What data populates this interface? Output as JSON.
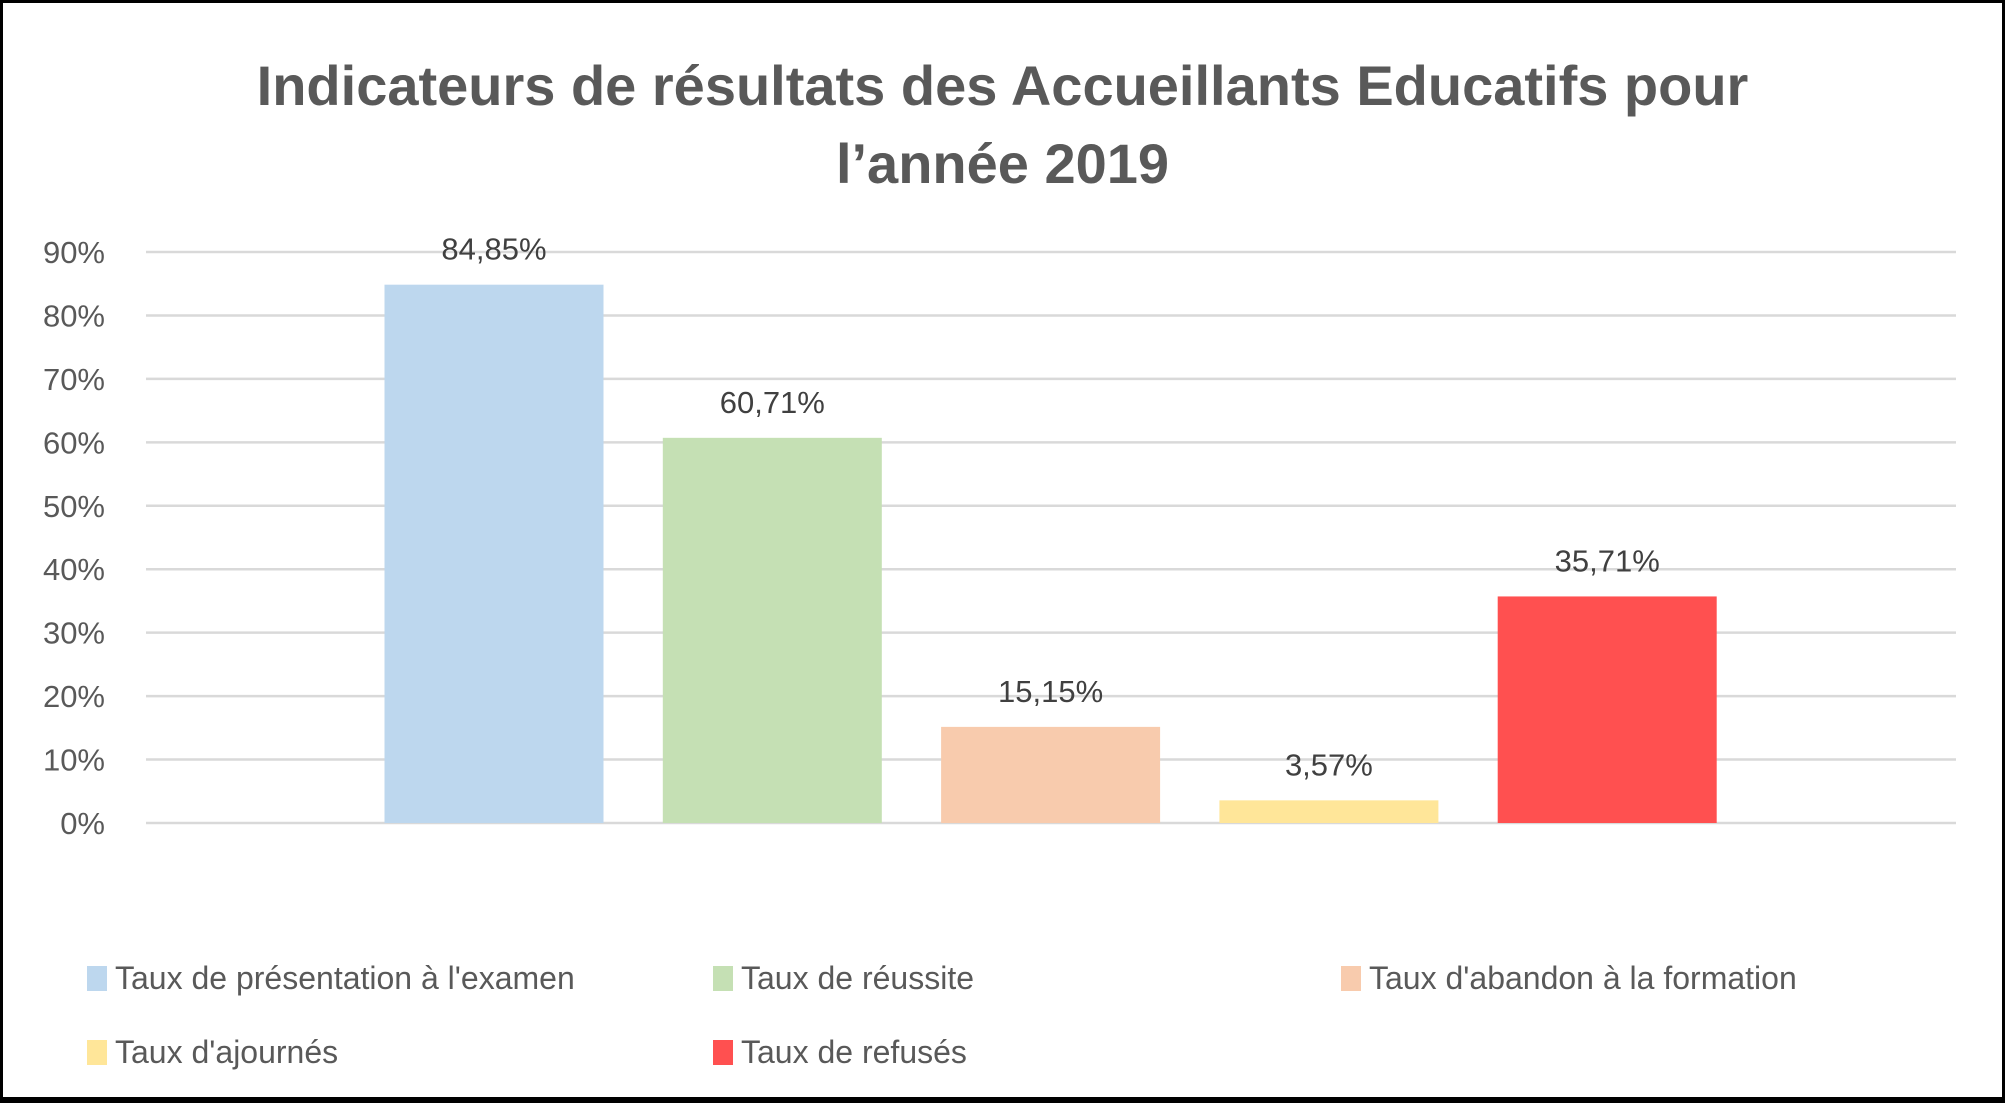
{
  "chart_data": {
    "type": "bar",
    "title_lines": [
      "Indicateurs de résultats des Accueillants Educatifs pour",
      "l’année 2019"
    ],
    "categories": [
      "Taux de présentation à l'examen",
      "Taux de réussite",
      "Taux d'abandon à la formation",
      "Taux d'ajournés",
      "Taux de refusés"
    ],
    "values": [
      84.85,
      60.71,
      15.15,
      3.57,
      35.71
    ],
    "data_labels": [
      "84,85%",
      "60,71%",
      "15,15%",
      "3,57%",
      "35,71%"
    ],
    "colors": [
      "#BDD7EE",
      "#C5E0B4",
      "#F8CBAD",
      "#FFE699",
      "#FF5050"
    ],
    "yticks": [
      "0%",
      "10%",
      "20%",
      "30%",
      "40%",
      "50%",
      "60%",
      "70%",
      "80%",
      "90%"
    ],
    "ylim": [
      0,
      90
    ],
    "xlabel": "",
    "ylabel": "",
    "grid": true,
    "legend_position": "bottom"
  }
}
